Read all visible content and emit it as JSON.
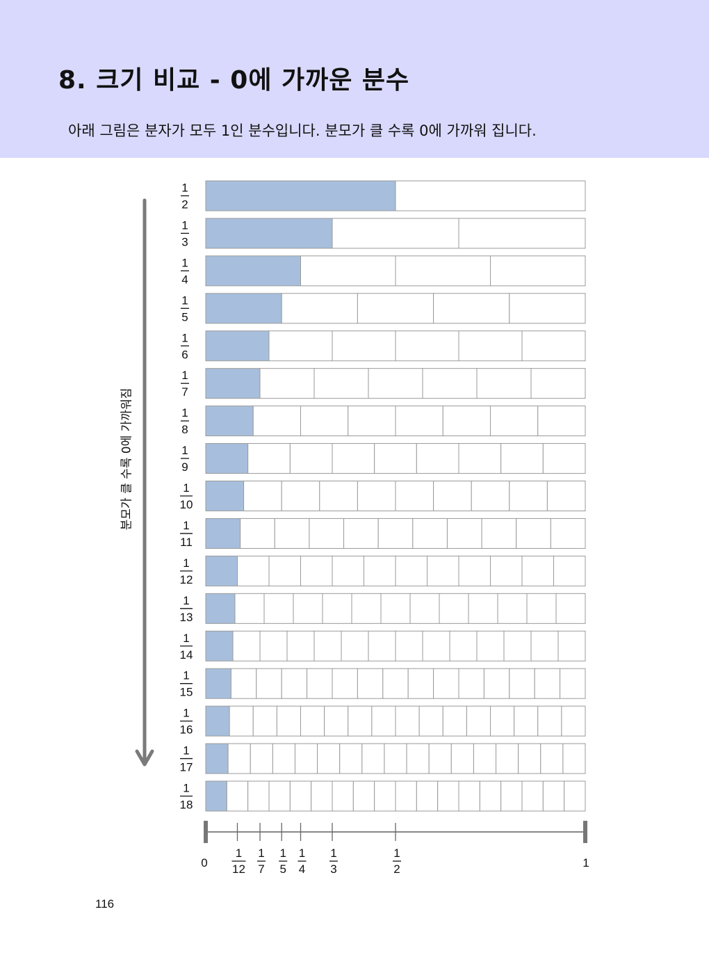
{
  "header": {
    "title": "8. 크기 비교 - 0에 가까운 분수",
    "description": "아래 그림은 분자가 모두 1인 분수입니다. 분모가 클 수록 0에 가까워 집니다."
  },
  "side_label": "분모가 클 수록 0에 가까워짐",
  "colors": {
    "header_background": "#d9d9fd",
    "shaded_part": "#a7bfdd",
    "cell_border": "#9a9a9a",
    "arrow": "#7a7a7a"
  },
  "fraction_bars": {
    "numerator": "1",
    "denominators": [
      2,
      3,
      4,
      5,
      6,
      7,
      8,
      9,
      10,
      11,
      12,
      13,
      14,
      15,
      16,
      17,
      18
    ]
  },
  "number_line": {
    "start_label": "0",
    "end_label": "1",
    "marks": [
      {
        "numerator": "1",
        "denominator": "12",
        "value": 0.0833
      },
      {
        "numerator": "1",
        "denominator": "7",
        "value": 0.1429
      },
      {
        "numerator": "1",
        "denominator": "5",
        "value": 0.2
      },
      {
        "numerator": "1",
        "denominator": "4",
        "value": 0.25
      },
      {
        "numerator": "1",
        "denominator": "3",
        "value": 0.3333
      },
      {
        "numerator": "1",
        "denominator": "2",
        "value": 0.5
      }
    ]
  },
  "page_number": "116"
}
